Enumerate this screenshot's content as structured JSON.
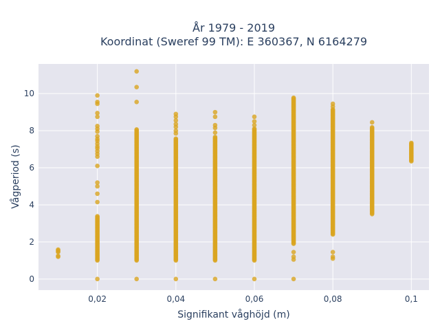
{
  "chart_data": {
    "type": "scatter",
    "title": "År 1979 - 2019",
    "subtitle": "Koordinat (Sweref 99 TM): E 360367, N 6164279",
    "xlabel": "Signifikant våghöjd (m)",
    "ylabel": "Vågperiod (s)",
    "xlim": [
      0.005,
      0.1045
    ],
    "ylim": [
      -0.6,
      11.6
    ],
    "x_ticks": [
      0.02,
      0.04,
      0.06,
      0.08,
      0.1
    ],
    "x_tick_labels": [
      "0,02",
      "0,04",
      "0,06",
      "0,08",
      "0,1"
    ],
    "y_ticks": [
      0,
      2,
      4,
      6,
      8,
      10
    ],
    "y_tick_labels": [
      "0",
      "2",
      "4",
      "6",
      "8",
      "10"
    ],
    "grid": true,
    "marker_color": "#daa520",
    "plot_background": "#e5e5ee",
    "columns": [
      {
        "x": 0.01,
        "ranges": [
          [
            1.2,
            1.25
          ],
          [
            1.45,
            1.62
          ]
        ],
        "points": []
      },
      {
        "x": 0.02,
        "ranges": [
          [
            1.0,
            3.4
          ]
        ],
        "points": [
          0,
          4.15,
          4.6,
          5.0,
          5.2,
          6.1,
          6.6,
          6.75,
          6.9,
          7.05,
          7.15,
          7.3,
          7.45,
          7.55,
          7.7,
          7.95,
          8.1,
          8.25,
          8.75,
          8.95,
          9.45,
          9.55,
          9.9
        ]
      },
      {
        "x": 0.03,
        "ranges": [
          [
            1.0,
            8.1
          ]
        ],
        "points": [
          0,
          9.55,
          10.35,
          11.2
        ]
      },
      {
        "x": 0.04,
        "ranges": [
          [
            1.0,
            7.6
          ]
        ],
        "points": [
          0,
          7.85,
          8.0,
          8.2,
          8.35,
          8.55,
          8.75,
          8.9
        ]
      },
      {
        "x": 0.05,
        "ranges": [
          [
            1.0,
            7.7
          ]
        ],
        "points": [
          0,
          7.9,
          8.15,
          8.3,
          8.75,
          9.0
        ]
      },
      {
        "x": 0.06,
        "ranges": [
          [
            1.0,
            8.15
          ]
        ],
        "points": [
          0,
          8.3,
          8.5,
          8.75
        ]
      },
      {
        "x": 0.07,
        "ranges": [
          [
            1.9,
            9.8
          ]
        ],
        "points": [
          0,
          1.05,
          1.2,
          1.45
        ]
      },
      {
        "x": 0.08,
        "ranges": [
          [
            2.4,
            9.15
          ]
        ],
        "points": [
          1.1,
          1.2,
          1.45,
          9.3,
          9.45
        ]
      },
      {
        "x": 0.09,
        "ranges": [
          [
            3.5,
            8.2
          ]
        ],
        "points": [
          8.45
        ]
      },
      {
        "x": 0.1,
        "ranges": [
          [
            6.35,
            7.35
          ]
        ],
        "points": []
      }
    ]
  }
}
